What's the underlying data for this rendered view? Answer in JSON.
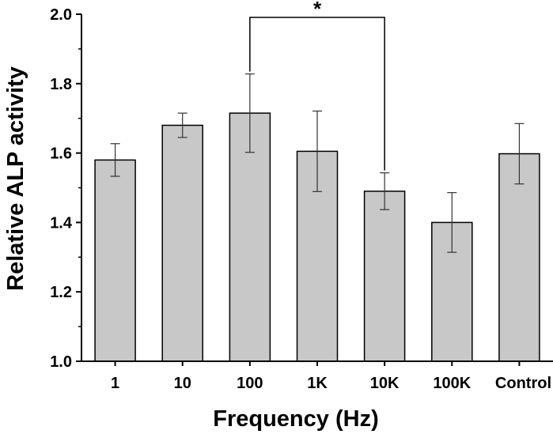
{
  "chart_data": {
    "type": "bar",
    "title": "",
    "xlabel": "Frequency (Hz)",
    "ylabel": "Relative ALP activity",
    "ylim": [
      1.0,
      2.0
    ],
    "yticks": [
      "1.0",
      "1.2",
      "1.4",
      "1.6",
      "1.8",
      "2.0"
    ],
    "categories": [
      "1",
      "10",
      "100",
      "1K",
      "10K",
      "100K",
      "Control"
    ],
    "values": [
      1.58,
      1.68,
      1.715,
      1.605,
      1.49,
      1.4,
      1.598
    ],
    "errors": [
      0.047,
      0.035,
      0.113,
      0.116,
      0.053,
      0.086,
      0.087
    ],
    "significance": {
      "from_category": "100",
      "to_category": "10K",
      "label": "*",
      "bracket_top": 2.0
    },
    "grid": false,
    "legend": "none"
  },
  "colors": {
    "bar_fill": "#c8c8c8",
    "bar_stroke": "#000000",
    "error_bar": "#333333",
    "axis": "#000000",
    "background": "#ffffff"
  }
}
